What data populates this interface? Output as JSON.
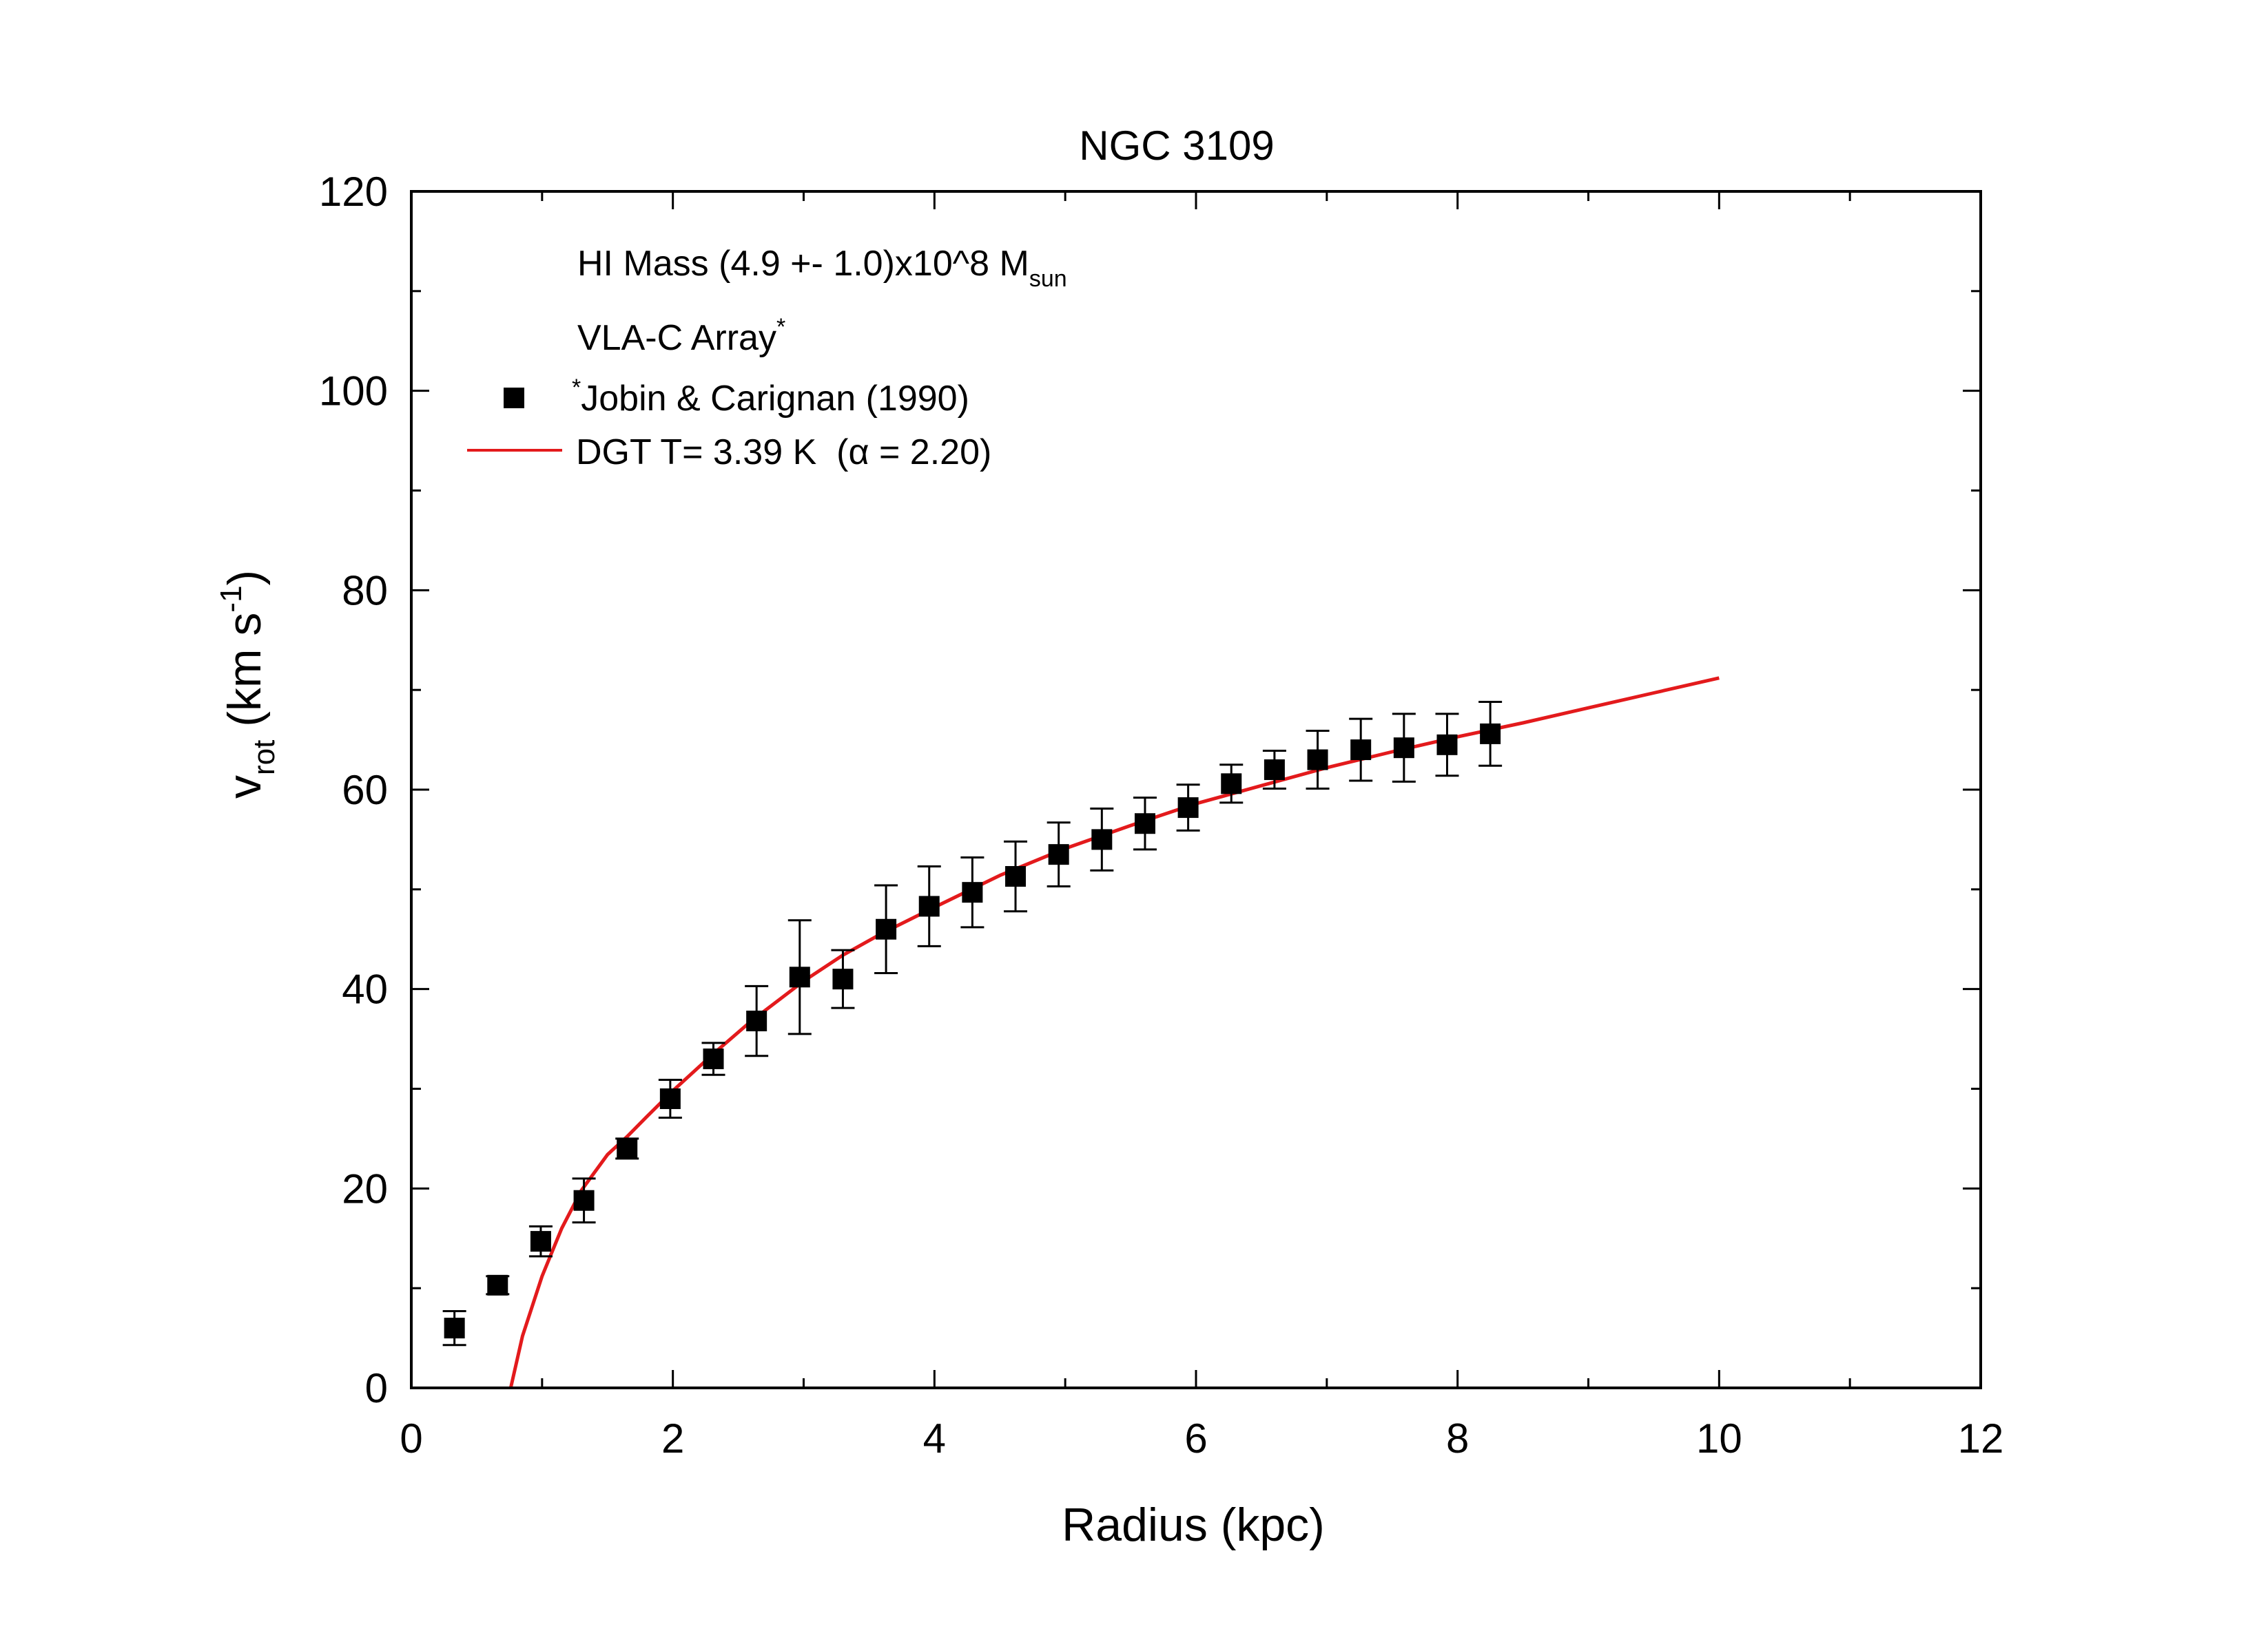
{
  "chart_data": {
    "type": "scatter",
    "title": "NGC 3109",
    "xlabel": "Radius (kpc)",
    "ylabel": {
      "main": "v",
      "sub": "rot",
      "units_pre": " (km s",
      "units_sup": "-1",
      "units_post": ")"
    },
    "xlim": [
      0,
      12
    ],
    "ylim": [
      0,
      120
    ],
    "xticks": [
      0,
      2,
      4,
      6,
      8,
      10,
      12
    ],
    "yticks": [
      0,
      20,
      40,
      60,
      80,
      100,
      120
    ],
    "grid": false,
    "annotations": [
      {
        "text": "HI Mass (4.9 +- 1.0)x10^8 M",
        "sub": "sun"
      },
      {
        "text": "VLA-C Array",
        "sup": "*"
      }
    ],
    "legend_position": "top-left",
    "series": [
      {
        "name": "Jobin & Carignan (1990)",
        "legend_sup": "*",
        "kind": "scatter-errorbar",
        "marker": "square",
        "color": "#000000",
        "x": [
          0.33,
          0.66,
          0.99,
          1.32,
          1.65,
          1.98,
          2.31,
          2.64,
          2.97,
          3.3,
          3.63,
          3.96,
          4.29,
          4.62,
          4.95,
          5.28,
          5.61,
          5.94,
          6.27,
          6.6,
          6.93,
          7.26,
          7.59,
          7.92,
          8.25
        ],
        "y": [
          6.0,
          10.3,
          14.7,
          18.8,
          24.0,
          29.0,
          33.0,
          36.8,
          41.2,
          41.0,
          46.0,
          48.3,
          49.7,
          51.3,
          53.5,
          55.0,
          56.6,
          58.2,
          60.6,
          62.0,
          63.0,
          64.0,
          64.2,
          64.5,
          65.6
        ],
        "yerr": [
          1.7,
          0.9,
          1.5,
          2.2,
          1.0,
          1.9,
          1.6,
          3.5,
          5.7,
          2.9,
          4.4,
          4.0,
          3.5,
          3.5,
          3.2,
          3.1,
          2.6,
          2.3,
          1.9,
          1.9,
          2.9,
          3.1,
          3.4,
          3.1,
          3.2
        ]
      },
      {
        "name": "DGT T= 3.39 K  (α = 2.20)",
        "kind": "line",
        "color": "#e31a1c",
        "x": [
          0.76,
          0.85,
          1.0,
          1.15,
          1.3,
          1.5,
          1.65,
          1.8,
          2.0,
          2.3,
          2.6,
          3.0,
          3.3,
          3.6,
          4.0,
          4.5,
          5.0,
          5.5,
          6.0,
          6.5,
          7.0,
          7.5,
          8.0,
          8.5,
          9.0,
          9.5,
          10.0
        ],
        "y": [
          0,
          5.2,
          11.2,
          16.0,
          19.8,
          23.4,
          25.2,
          27.2,
          29.8,
          33.4,
          36.8,
          40.8,
          43.4,
          45.6,
          48.2,
          51.4,
          54.1,
          56.4,
          58.6,
          60.4,
          62.2,
          63.8,
          65.3,
          66.7,
          68.2,
          69.7,
          71.2
        ]
      }
    ]
  }
}
